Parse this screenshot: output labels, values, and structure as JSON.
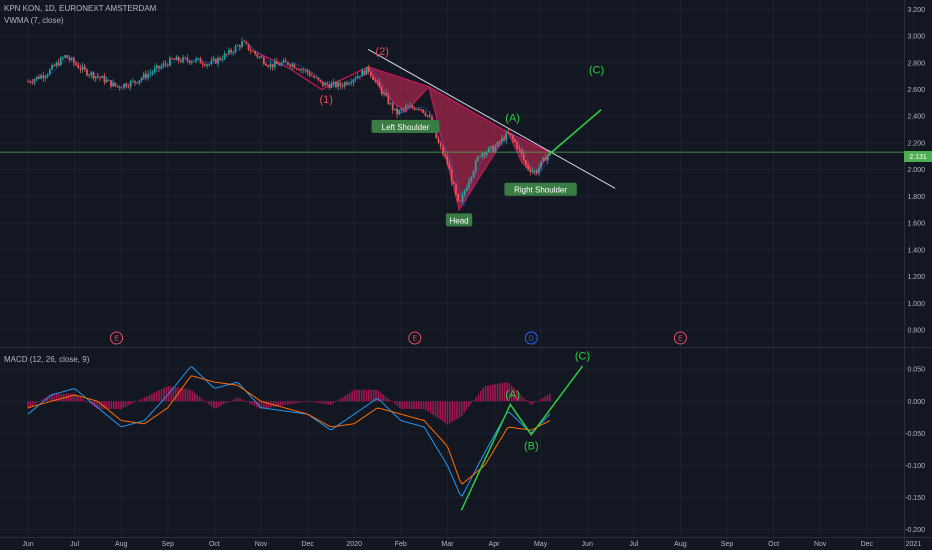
{
  "header": {
    "symbol": "KPN KON, 1D, EURONEXT AMSTERDAM",
    "indicator": "VWMA (7, close)"
  },
  "price_badge": "2.131",
  "macd_header": "MACD (12, 26, close, 9)",
  "events": [
    {
      "label": "E",
      "month_index": 1.9,
      "color": "#e84a5f"
    },
    {
      "label": "E",
      "month_index": 8.3,
      "color": "#e84a5f"
    },
    {
      "label": "D",
      "month_index": 10.8,
      "color": "#2962ff"
    },
    {
      "label": "E",
      "month_index": 14.0,
      "color": "#e84a5f"
    }
  ],
  "colors": {
    "background": "#131722",
    "grid": "#1e2230",
    "up_candle": "#26a69a",
    "down_candle": "#ef5350",
    "pattern_fill": "#a0274a",
    "pattern_line": "#c2185b",
    "green_wave": "#2ecc40",
    "price_line": "#4caf50",
    "macd_line": "#2196f3",
    "signal_line": "#ff6d00",
    "histogram": "#c2185b",
    "annotation_box": "#3a7d44"
  },
  "chart_data": [
    {
      "type": "candlestick",
      "title": "KPN KON, 1D, EURONEXT AMSTERDAM",
      "x_ticks": [
        "Jun",
        "Jul",
        "Aug",
        "Sep",
        "Oct",
        "Nov",
        "Dec",
        "2020",
        "Feb",
        "Mar",
        "Apr",
        "May",
        "Jun",
        "Jul",
        "Aug",
        "Sep",
        "Oct",
        "Nov",
        "Dec",
        "2021"
      ],
      "y_ticks": [
        "3.200",
        "3.000",
        "2.800",
        "2.600",
        "2.400",
        "2.200",
        "2.000",
        "1.800",
        "1.600",
        "1.400",
        "1.200",
        "1.000",
        "0.800"
      ],
      "ylim": [
        0.68,
        3.24
      ],
      "close_series": [
        {
          "m": 0.0,
          "v": 2.66
        },
        {
          "m": 0.4,
          "v": 2.72
        },
        {
          "m": 0.8,
          "v": 2.85
        },
        {
          "m": 1.2,
          "v": 2.74
        },
        {
          "m": 1.6,
          "v": 2.68
        },
        {
          "m": 1.9,
          "v": 2.62
        },
        {
          "m": 2.3,
          "v": 2.66
        },
        {
          "m": 2.7,
          "v": 2.74
        },
        {
          "m": 3.1,
          "v": 2.82
        },
        {
          "m": 3.6,
          "v": 2.82
        },
        {
          "m": 3.9,
          "v": 2.79
        },
        {
          "m": 4.3,
          "v": 2.87
        },
        {
          "m": 4.6,
          "v": 2.95
        },
        {
          "m": 4.9,
          "v": 2.86
        },
        {
          "m": 5.2,
          "v": 2.78
        },
        {
          "m": 5.6,
          "v": 2.8
        },
        {
          "m": 6.0,
          "v": 2.73
        },
        {
          "m": 6.3,
          "v": 2.64
        },
        {
          "m": 6.7,
          "v": 2.63
        },
        {
          "m": 7.0,
          "v": 2.69
        },
        {
          "m": 7.3,
          "v": 2.75
        },
        {
          "m": 7.6,
          "v": 2.58
        },
        {
          "m": 7.9,
          "v": 2.42
        },
        {
          "m": 8.1,
          "v": 2.46
        },
        {
          "m": 8.4,
          "v": 2.47
        },
        {
          "m": 8.6,
          "v": 2.4
        },
        {
          "m": 8.8,
          "v": 2.2
        },
        {
          "m": 9.0,
          "v": 2.05
        },
        {
          "m": 9.25,
          "v": 1.72
        },
        {
          "m": 9.45,
          "v": 1.92
        },
        {
          "m": 9.7,
          "v": 2.12
        },
        {
          "m": 10.0,
          "v": 2.16
        },
        {
          "m": 10.3,
          "v": 2.27
        },
        {
          "m": 10.5,
          "v": 2.18
        },
        {
          "m": 10.7,
          "v": 2.02
        },
        {
          "m": 10.9,
          "v": 1.98
        },
        {
          "m": 11.1,
          "v": 2.09
        },
        {
          "m": 11.2,
          "v": 2.13
        }
      ],
      "current_price": 2.131,
      "annotations": [
        {
          "text": "(1)",
          "m": 6.4,
          "v": 2.5,
          "color": "#e84a5f"
        },
        {
          "text": "(2)",
          "m": 7.6,
          "v": 2.86,
          "color": "#e84a5f"
        },
        {
          "text": "(A)",
          "m": 10.4,
          "v": 2.36,
          "color": "#2ecc40"
        },
        {
          "text": "(C)",
          "m": 12.2,
          "v": 2.72,
          "color": "#2ecc40"
        }
      ],
      "pattern_labels": [
        {
          "text": "Left Shoulder",
          "m": 8.1,
          "v": 2.32
        },
        {
          "text": "Head",
          "m": 9.25,
          "v": 1.62
        },
        {
          "text": "Right Shoulder",
          "m": 11.0,
          "v": 1.85
        }
      ],
      "neckline": [
        {
          "m": 7.3,
          "v": 2.9
        },
        {
          "m": 12.6,
          "v": 1.86
        }
      ],
      "wave_c_projection": [
        {
          "m": 11.2,
          "v": 2.12
        },
        {
          "m": 12.3,
          "v": 2.45
        }
      ]
    },
    {
      "type": "line",
      "title": "MACD (12, 26, close, 9)",
      "y_ticks": [
        "0.050",
        "0.000",
        "-0.050",
        "-0.100",
        "-0.150",
        "-0.200"
      ],
      "ylim": [
        -0.21,
        0.08
      ],
      "series": [
        {
          "name": "MACD",
          "points": [
            {
              "m": 0.0,
              "v": -0.02
            },
            {
              "m": 0.5,
              "v": 0.01
            },
            {
              "m": 1.0,
              "v": 0.02
            },
            {
              "m": 1.5,
              "v": -0.01
            },
            {
              "m": 2.0,
              "v": -0.04
            },
            {
              "m": 2.5,
              "v": -0.03
            },
            {
              "m": 3.0,
              "v": 0.01
            },
            {
              "m": 3.5,
              "v": 0.055
            },
            {
              "m": 4.0,
              "v": 0.02
            },
            {
              "m": 4.5,
              "v": 0.03
            },
            {
              "m": 5.0,
              "v": -0.01
            },
            {
              "m": 5.5,
              "v": -0.015
            },
            {
              "m": 6.0,
              "v": -0.02
            },
            {
              "m": 6.5,
              "v": -0.045
            },
            {
              "m": 7.0,
              "v": -0.02
            },
            {
              "m": 7.5,
              "v": 0.005
            },
            {
              "m": 8.0,
              "v": -0.03
            },
            {
              "m": 8.5,
              "v": -0.04
            },
            {
              "m": 9.0,
              "v": -0.1
            },
            {
              "m": 9.3,
              "v": -0.15
            },
            {
              "m": 9.8,
              "v": -0.08
            },
            {
              "m": 10.3,
              "v": -0.015
            },
            {
              "m": 10.8,
              "v": -0.05
            },
            {
              "m": 11.2,
              "v": -0.02
            }
          ]
        },
        {
          "name": "Signal",
          "points": [
            {
              "m": 0.0,
              "v": -0.01
            },
            {
              "m": 0.5,
              "v": 0.0
            },
            {
              "m": 1.0,
              "v": 0.01
            },
            {
              "m": 1.5,
              "v": 0.0
            },
            {
              "m": 2.0,
              "v": -0.03
            },
            {
              "m": 2.5,
              "v": -0.035
            },
            {
              "m": 3.0,
              "v": -0.01
            },
            {
              "m": 3.5,
              "v": 0.04
            },
            {
              "m": 4.0,
              "v": 0.03
            },
            {
              "m": 4.5,
              "v": 0.025
            },
            {
              "m": 5.0,
              "v": 0.0
            },
            {
              "m": 5.5,
              "v": -0.01
            },
            {
              "m": 6.0,
              "v": -0.02
            },
            {
              "m": 6.5,
              "v": -0.04
            },
            {
              "m": 7.0,
              "v": -0.035
            },
            {
              "m": 7.5,
              "v": -0.01
            },
            {
              "m": 8.0,
              "v": -0.02
            },
            {
              "m": 8.5,
              "v": -0.03
            },
            {
              "m": 9.0,
              "v": -0.07
            },
            {
              "m": 9.3,
              "v": -0.13
            },
            {
              "m": 9.8,
              "v": -0.1
            },
            {
              "m": 10.3,
              "v": -0.04
            },
            {
              "m": 10.8,
              "v": -0.045
            },
            {
              "m": 11.2,
              "v": -0.03
            }
          ]
        }
      ],
      "wave_path": [
        {
          "m": 9.3,
          "v": -0.17
        },
        {
          "m": 10.35,
          "v": -0.005
        },
        {
          "m": 10.8,
          "v": -0.052
        },
        {
          "m": 11.9,
          "v": 0.055
        }
      ],
      "annotations": [
        {
          "text": "(A)",
          "m": 10.4,
          "v": 0.005,
          "color": "#2ecc40"
        },
        {
          "text": "(B)",
          "m": 10.8,
          "v": -0.075,
          "color": "#2ecc40"
        },
        {
          "text": "(C)",
          "m": 11.9,
          "v": 0.065,
          "color": "#2ecc40"
        }
      ]
    }
  ]
}
